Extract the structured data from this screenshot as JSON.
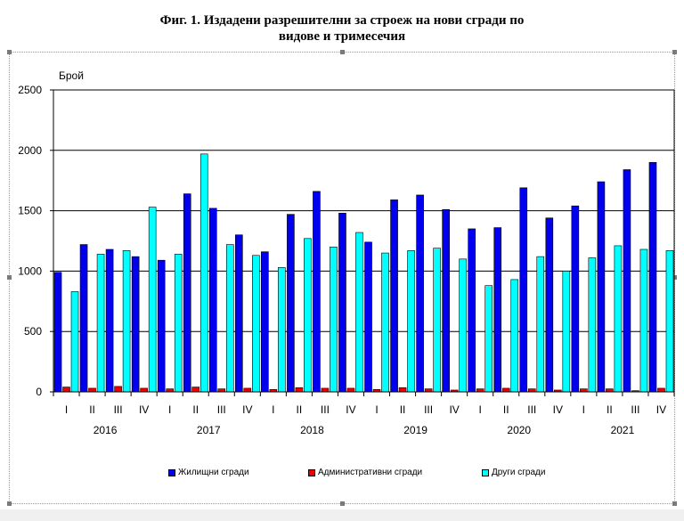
{
  "title": {
    "line1": "Фиг. 1. Издадени разрешителни за строеж на нови сгради по",
    "line2": "видове и тримесечия"
  },
  "chart_data": {
    "type": "bar",
    "title": "Фиг. 1. Издадени разрешителни за строеж на нови сгради по видове и тримесечия",
    "ylabel": "Брой",
    "xlabel": "",
    "ylim": [
      0,
      2500
    ],
    "yticks": [
      0,
      500,
      1000,
      1500,
      2000,
      2500
    ],
    "grid": true,
    "legend_position": "bottom",
    "categories": [
      "I",
      "II",
      "III",
      "IV",
      "I",
      "II",
      "III",
      "IV",
      "I",
      "II",
      "III",
      "IV",
      "I",
      "II",
      "III",
      "IV",
      "I",
      "II",
      "III",
      "IV",
      "I",
      "II",
      "III",
      "IV"
    ],
    "years": [
      "2016",
      "2017",
      "2018",
      "2019",
      "2020",
      "2021"
    ],
    "series": [
      {
        "name": "Жилищни сгради",
        "color": "#0000ee",
        "values": [
          990,
          1220,
          1180,
          1120,
          1090,
          1640,
          1520,
          1300,
          1160,
          1470,
          1660,
          1480,
          1240,
          1590,
          1630,
          1510,
          1350,
          1360,
          1690,
          1440,
          1540,
          1740,
          1840,
          1900
        ]
      },
      {
        "name": "Административни сгради",
        "color": "#ee0000",
        "values": [
          40,
          30,
          45,
          30,
          25,
          40,
          25,
          30,
          20,
          35,
          30,
          30,
          20,
          35,
          25,
          15,
          25,
          30,
          25,
          15,
          25,
          25,
          10,
          30
        ]
      },
      {
        "name": "Други сгради",
        "color": "#00ffff",
        "values": [
          830,
          1140,
          1170,
          1530,
          1140,
          1970,
          1220,
          1130,
          1030,
          1270,
          1200,
          1320,
          1150,
          1170,
          1190,
          1100,
          880,
          930,
          1120,
          1000,
          1110,
          1210,
          1180,
          1170
        ]
      }
    ]
  }
}
